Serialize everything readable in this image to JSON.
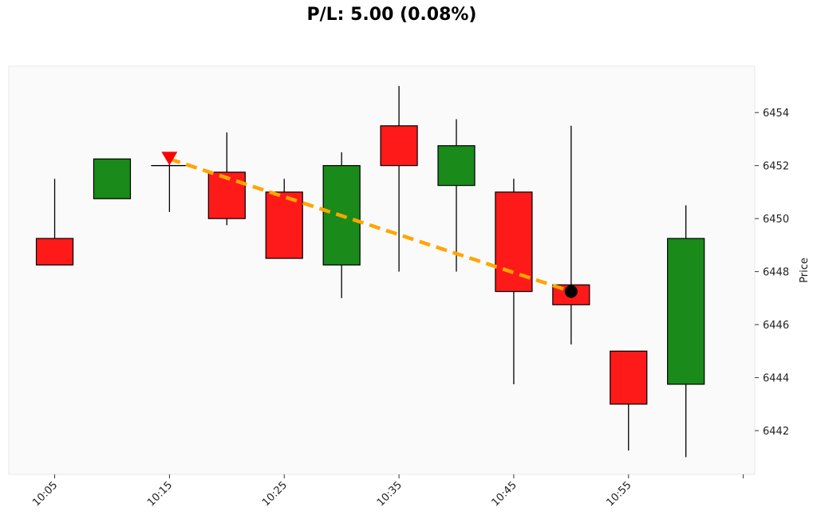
{
  "chart_data": {
    "type": "candlestick",
    "title": "P/L: 5.00 (0.08%)",
    "ylabel": "Price",
    "xlabel": "",
    "x_tick_labels": [
      "10:05",
      "10:15",
      "10:25",
      "10:35",
      "10:45",
      "10:55"
    ],
    "x_tick_positions": [
      0,
      2,
      4,
      6,
      8,
      10
    ],
    "y_ticks": [
      6442,
      6444,
      6446,
      6448,
      6450,
      6452,
      6454
    ],
    "ylim": [
      6440.35,
      6455.75
    ],
    "xlim": [
      -0.8,
      12.2
    ],
    "grid": false,
    "candles": [
      {
        "time": "10:05",
        "open": 6449.25,
        "high": 6451.5,
        "low": 6448.25,
        "close": 6448.25
      },
      {
        "time": "10:10",
        "open": 6450.75,
        "high": 6452.25,
        "low": 6450.75,
        "close": 6452.25
      },
      {
        "time": "10:15",
        "open": 6452.0,
        "high": 6452.25,
        "low": 6450.25,
        "close": 6452.0
      },
      {
        "time": "10:20",
        "open": 6451.75,
        "high": 6453.25,
        "low": 6449.75,
        "close": 6450.0
      },
      {
        "time": "10:25",
        "open": 6451.0,
        "high": 6451.5,
        "low": 6448.5,
        "close": 6448.5
      },
      {
        "time": "10:30",
        "open": 6448.25,
        "high": 6452.5,
        "low": 6447.0,
        "close": 6452.0
      },
      {
        "time": "10:35",
        "open": 6453.5,
        "high": 6455.0,
        "low": 6448.0,
        "close": 6452.0
      },
      {
        "time": "10:40",
        "open": 6451.25,
        "high": 6453.75,
        "low": 6448.0,
        "close": 6452.75
      },
      {
        "time": "10:45",
        "open": 6451.0,
        "high": 6451.5,
        "low": 6443.75,
        "close": 6447.25
      },
      {
        "time": "10:50",
        "open": 6447.5,
        "high": 6453.5,
        "low": 6445.25,
        "close": 6446.75
      },
      {
        "time": "10:55",
        "open": 6445.0,
        "high": 6445.0,
        "low": 6441.25,
        "close": 6443.0
      },
      {
        "time": "11:00",
        "open": 6443.75,
        "high": 6450.5,
        "low": 6441.0,
        "close": 6449.25
      }
    ],
    "trade": {
      "entry": {
        "index": 2,
        "price": 6452.25,
        "marker": "down-triangle"
      },
      "exit": {
        "index": 9,
        "price": 6447.25,
        "marker": "circle"
      }
    },
    "colors": {
      "up": "#1a8a1a",
      "down": "#ff1a1a",
      "trade_line": "#ffa500",
      "entry_marker": "#ff0000",
      "exit_marker": "#000000",
      "plot_bg": "#fafafa"
    }
  }
}
